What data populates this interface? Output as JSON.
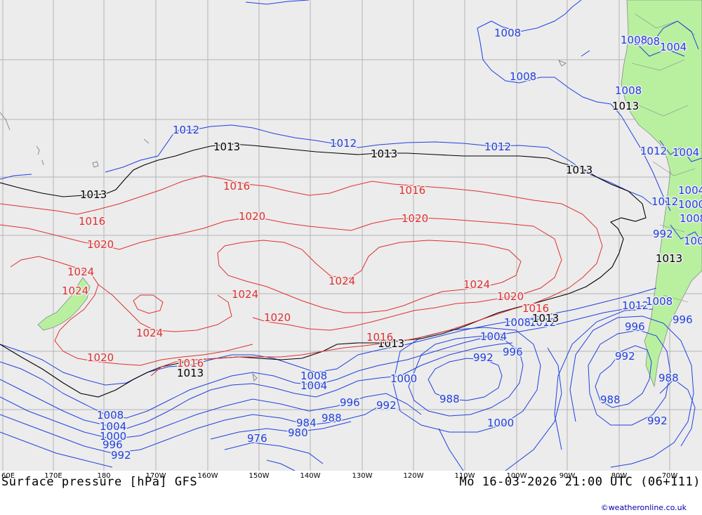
{
  "title_left": "Surface pressure [hPa] GFS",
  "title_right": "Mo 16-03-2026 21:00 UTC (06+111)",
  "credit": "©weatheronline.co.uk",
  "colors": {
    "ocean": "#ececec",
    "land": "#b8f0a0",
    "grid": "#b4b4b4",
    "isobar_low": "#2040e0",
    "isobar_mid": "#000000",
    "isobar_high": "#e03030"
  },
  "lon_labels": [
    "60E",
    "170E",
    "180",
    "170W",
    "160W",
    "150W",
    "140W",
    "130W",
    "120W",
    "110W",
    "100W",
    "90W",
    "80W",
    "70W"
  ],
  "isobar_labels": {
    "blue": [
      "1008",
      "1008",
      "1008",
      "1008",
      "1004",
      "1012",
      "1012",
      "1012",
      "1012",
      "1004",
      "1012",
      "1008",
      "1012",
      "1008",
      "1004",
      "1000",
      "996",
      "992",
      "1008",
      "1004",
      "1000",
      "996",
      "992",
      "988",
      "984",
      "980",
      "976",
      "1008",
      "1004",
      "1000",
      "996",
      "992",
      "992",
      "988",
      "1000",
      "1008",
      "1004",
      "996",
      "992",
      "988",
      "988",
      "992",
      "1004",
      "1008",
      "996",
      "1012"
    ],
    "black": [
      "1013",
      "1013",
      "1013",
      "1013",
      "1013",
      "1013",
      "1013",
      "1013",
      "1013"
    ],
    "red": [
      "1016",
      "1016",
      "1016",
      "1020",
      "1020",
      "1020",
      "1020",
      "1024",
      "1024",
      "1024",
      "1024",
      "1024",
      "1020",
      "1016",
      "1016",
      "1020",
      "1016",
      "1024"
    ]
  }
}
